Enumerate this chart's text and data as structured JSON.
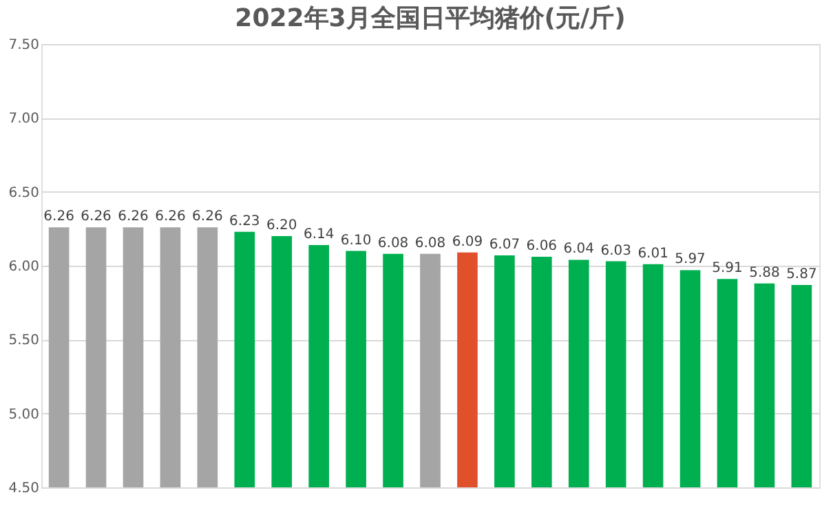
{
  "chart_data": {
    "type": "bar",
    "title": "2022年3月全国日平均猪价(元/斤)",
    "categories": [
      null,
      null,
      null,
      null,
      null,
      null,
      null,
      null,
      null,
      null,
      null,
      null,
      null,
      null,
      null,
      null,
      null,
      null,
      null,
      null,
      null
    ],
    "values": [
      6.26,
      6.26,
      6.26,
      6.26,
      6.26,
      6.23,
      6.2,
      6.14,
      6.1,
      6.08,
      6.08,
      6.09,
      6.07,
      6.06,
      6.04,
      6.03,
      6.01,
      5.97,
      5.91,
      5.88,
      5.87
    ],
    "value_labels": [
      "6.26",
      "6.26",
      "6.26",
      "6.26",
      "6.26",
      "6.23",
      "6.20",
      "6.14",
      "6.10",
      "6.08",
      "6.08",
      "6.09",
      "6.07",
      "6.06",
      "6.04",
      "6.03",
      "6.01",
      "5.97",
      "5.91",
      "5.88",
      "5.87"
    ],
    "colors": [
      "#a5a5a5",
      "#a5a5a5",
      "#a5a5a5",
      "#a5a5a5",
      "#a5a5a5",
      "#00b050",
      "#00b050",
      "#00b050",
      "#00b050",
      "#00b050",
      "#a5a5a5",
      "#e0502a",
      "#00b050",
      "#00b050",
      "#00b050",
      "#00b050",
      "#00b050",
      "#00b050",
      "#00b050",
      "#00b050",
      "#00b050"
    ],
    "ylim": [
      4.5,
      7.5
    ],
    "yticks": [
      {
        "value": 4.5,
        "label": "4.50"
      },
      {
        "value": 5.0,
        "label": "5.00"
      },
      {
        "value": 5.5,
        "label": "5.50"
      },
      {
        "value": 6.0,
        "label": "6.00"
      },
      {
        "value": 6.5,
        "label": "6.50"
      },
      {
        "value": 7.0,
        "label": "7.00"
      },
      {
        "value": 7.5,
        "label": "7.50"
      }
    ],
    "grid": "y",
    "tick_labels": "y"
  }
}
